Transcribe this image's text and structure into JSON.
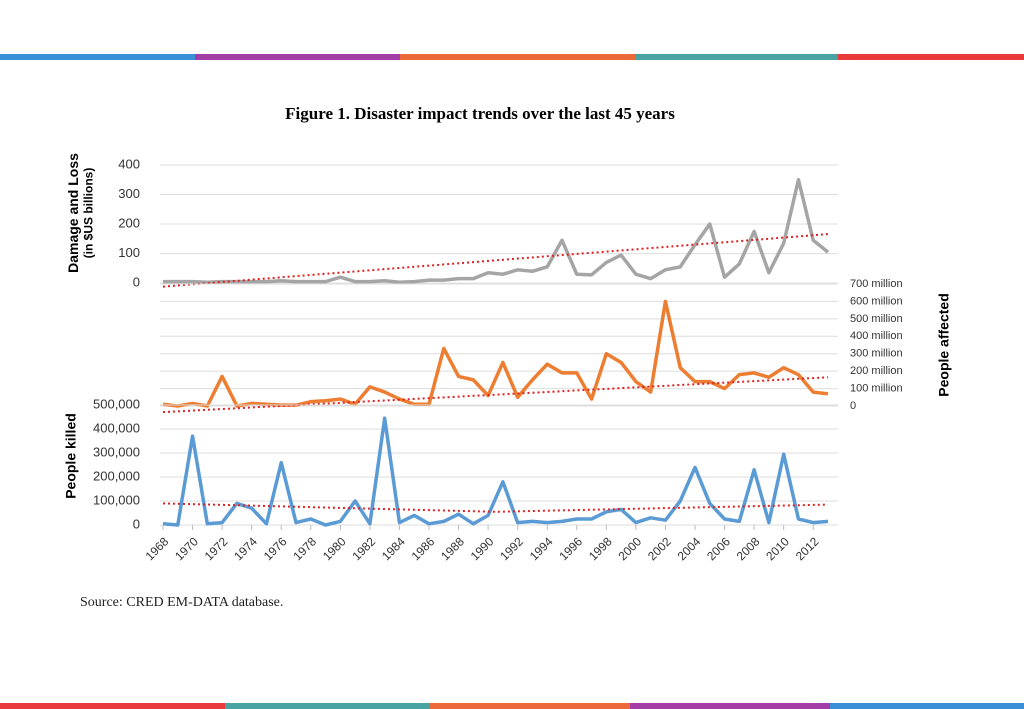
{
  "title": "Figure 1.  Disaster impact trends over the last 45 years",
  "source": "Source: CRED EM-DATA database.",
  "chart_data": [
    {
      "type": "line",
      "ylabel": [
        "Damage and Loss",
        "(in $US billions)"
      ],
      "ylim": [
        -20,
        400
      ],
      "yticks": [
        0,
        100,
        200,
        300,
        400
      ],
      "grid": true,
      "axis_side": "left",
      "series": [
        {
          "color": "#a5a5a5",
          "values": [
            5,
            5,
            5,
            3,
            5,
            5,
            5,
            5,
            8,
            5,
            5,
            5,
            20,
            5,
            5,
            8,
            3,
            5,
            10,
            10,
            15,
            15,
            35,
            30,
            45,
            40,
            55,
            145,
            30,
            28,
            70,
            95,
            30,
            15,
            45,
            55,
            130,
            200,
            20,
            65,
            175,
            35,
            135,
            350,
            145,
            105
          ]
        }
      ],
      "trendline": {
        "color": "#e02020",
        "values": [
          -12,
          166
        ]
      }
    },
    {
      "type": "line",
      "ylabel": [
        "People affected"
      ],
      "ylim": [
        -40000000,
        700000000
      ],
      "axis_side": "right",
      "grid": true,
      "yticks": [
        0,
        {
          "value": 100000000,
          "label": "100 million"
        },
        {
          "value": 200000000,
          "label": "200 million"
        },
        {
          "value": 300000000,
          "label": "300 million"
        },
        {
          "value": 400000000,
          "label": "400 million"
        },
        {
          "value": 500000000,
          "label": "500 million"
        },
        {
          "value": 600000000,
          "label": "600 million"
        },
        {
          "value": 700000000,
          "label": "700 million"
        }
      ],
      "series": [
        {
          "color": "#ed7d31",
          "values": [
            10000000,
            0,
            15000000,
            0,
            170000000,
            0,
            15000000,
            10000000,
            5000000,
            5000000,
            25000000,
            30000000,
            40000000,
            10000000,
            110000000,
            80000000,
            40000000,
            10000000,
            10000000,
            330000000,
            170000000,
            150000000,
            60000000,
            250000000,
            50000000,
            150000000,
            240000000,
            190000000,
            190000000,
            40000000,
            300000000,
            250000000,
            140000000,
            80000000,
            600000000,
            220000000,
            140000000,
            140000000,
            100000000,
            180000000,
            190000000,
            165000000,
            220000000,
            180000000,
            80000000,
            70000000
          ]
        }
      ],
      "trendline": {
        "color": "#e02020",
        "values": [
          -35000000,
          165000000
        ]
      }
    },
    {
      "type": "line",
      "ylabel": [
        "People killed"
      ],
      "ylim": [
        0,
        500000
      ],
      "axis_side": "left",
      "grid": true,
      "yticks": [
        0,
        {
          "value": 100000,
          "label": "100,000"
        },
        {
          "value": 200000,
          "label": "200,000"
        },
        {
          "value": 300000,
          "label": "300,000"
        },
        {
          "value": 400000,
          "label": "400,000"
        },
        {
          "value": 500000,
          "label": "500,000"
        }
      ],
      "categories": [
        "1968",
        null,
        "1970",
        null,
        "1972",
        null,
        "1974",
        null,
        "1976",
        null,
        "1978",
        null,
        "1980",
        null,
        "1982",
        null,
        "1984",
        null,
        "1986",
        null,
        "1988",
        null,
        "1990",
        null,
        "1992",
        null,
        "1994",
        null,
        "1996",
        null,
        "1998",
        null,
        "2000",
        null,
        "2002",
        null,
        "2004",
        null,
        "2006",
        null,
        "2008",
        null,
        "2010",
        null,
        "2012",
        null
      ],
      "series": [
        {
          "color": "#5b9bd5",
          "values": [
            5000,
            0,
            370000,
            5000,
            10000,
            90000,
            70000,
            5000,
            260000,
            10000,
            25000,
            0,
            15000,
            100000,
            5000,
            445000,
            10000,
            40000,
            5000,
            15000,
            45000,
            5000,
            40000,
            180000,
            10000,
            15000,
            10000,
            15000,
            25000,
            25000,
            55000,
            65000,
            10000,
            30000,
            20000,
            100000,
            240000,
            90000,
            25000,
            15000,
            230000,
            10000,
            295000,
            25000,
            10000,
            15000
          ]
        }
      ],
      "trendline": {
        "color": "#e02020",
        "values": [
          90000,
          55000,
          85000
        ]
      }
    }
  ]
}
